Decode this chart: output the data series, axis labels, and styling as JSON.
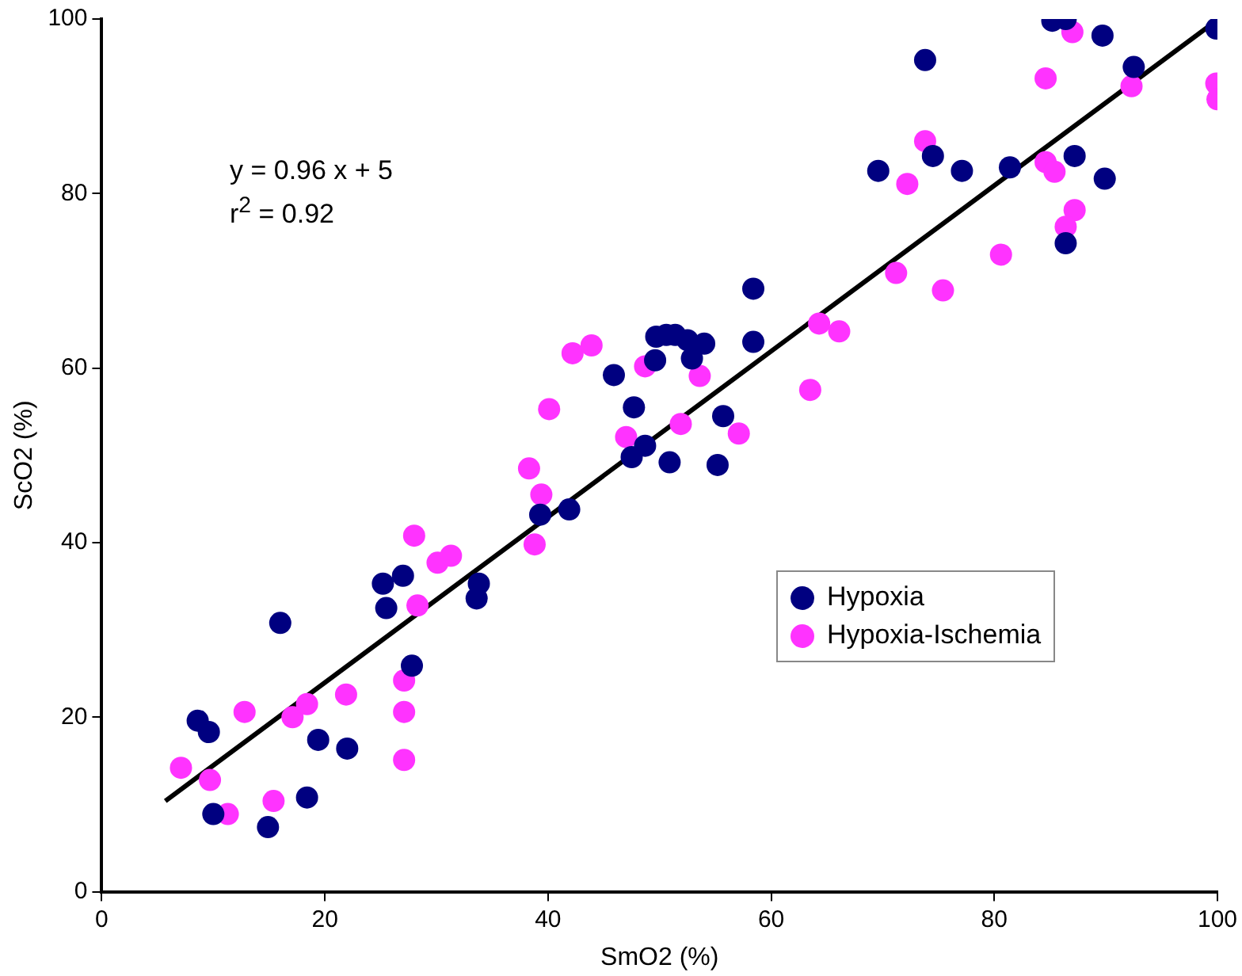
{
  "chart_data": {
    "type": "scatter",
    "xlabel": "SmO2 (%)",
    "ylabel": "ScO2 (%)",
    "xlim": [
      0,
      100
    ],
    "ylim": [
      0,
      100
    ],
    "xticks": [
      0,
      20,
      40,
      60,
      80,
      100
    ],
    "yticks": [
      0,
      20,
      40,
      60,
      80,
      100
    ],
    "grid": false,
    "legend": "right",
    "marker": "circle",
    "annotations": [
      "y = 0.96 x + 5",
      "r$^{2}$ = 0.92"
    ],
    "series": [
      {
        "name": "Hypoxia",
        "color": "#000080",
        "x": [
          8.6,
          9.6,
          10,
          14.9,
          16,
          18.4,
          19.4,
          22,
          25.2,
          25.5,
          27,
          27.8,
          33.8,
          33.6,
          39.3,
          41.9,
          45.9,
          47.7,
          47.5,
          48.7,
          49.6,
          49.7,
          50.6,
          51.4,
          50.9,
          52.5,
          52.9,
          54,
          55.7,
          55.2,
          58.4,
          58.4,
          73.8,
          85.2,
          86.4,
          89.7,
          92.5,
          99.9,
          69.6,
          74.5,
          77.1,
          81.4,
          87.2,
          89.9,
          86.4
        ],
        "values": [
          19.6,
          18.3,
          8.9,
          7.4,
          30.8,
          10.8,
          17.4,
          16.4,
          35.3,
          32.5,
          36.2,
          25.9,
          35.3,
          33.6,
          43.2,
          43.8,
          59.2,
          55.5,
          49.8,
          51.1,
          60.9,
          63.6,
          63.8,
          63.8,
          49.2,
          63.2,
          61.1,
          62.8,
          54.5,
          48.9,
          69.1,
          63,
          95.3,
          99.8,
          100,
          98.1,
          94.5,
          98.9,
          82.6,
          84.3,
          82.6,
          83,
          84.3,
          81.7,
          74.3
        ]
      },
      {
        "name": "Hypoxia-Ischemia",
        "color": "#ff33ff",
        "x": [
          7.1,
          9.7,
          11.3,
          12.8,
          15.4,
          17.1,
          18.4,
          21.9,
          27.1,
          27.1,
          27.1,
          28.3,
          28,
          30.1,
          31.3,
          38.3,
          39.4,
          38.8,
          40.1,
          42.2,
          43.9,
          48.7,
          47,
          53.6,
          51.9,
          57.1,
          63.5,
          64.3,
          66.1,
          75.4,
          71.2,
          80.6,
          72.2,
          73.8,
          84.6,
          87,
          92.3,
          99.9,
          100,
          84.6,
          85.4,
          87.2,
          86.4
        ],
        "values": [
          14.2,
          12.8,
          8.9,
          20.6,
          10.4,
          20,
          21.5,
          22.6,
          15.1,
          20.6,
          24.2,
          32.8,
          40.8,
          37.7,
          38.5,
          48.5,
          45.5,
          39.8,
          55.3,
          61.7,
          62.6,
          60.2,
          52.1,
          59.1,
          53.6,
          52.5,
          57.5,
          65.1,
          64.2,
          68.9,
          70.9,
          73,
          81.1,
          86,
          93.2,
          98.5,
          92.3,
          92.6,
          90.8,
          83.6,
          82.5,
          78.1,
          76.2
        ]
      },
      {
        "type": "line",
        "color": "#000000",
        "marker": "none",
        "line_style": "solid",
        "x": [
          5.7,
          99.9
        ],
        "values": [
          10.4,
          99.8
        ]
      }
    ]
  }
}
